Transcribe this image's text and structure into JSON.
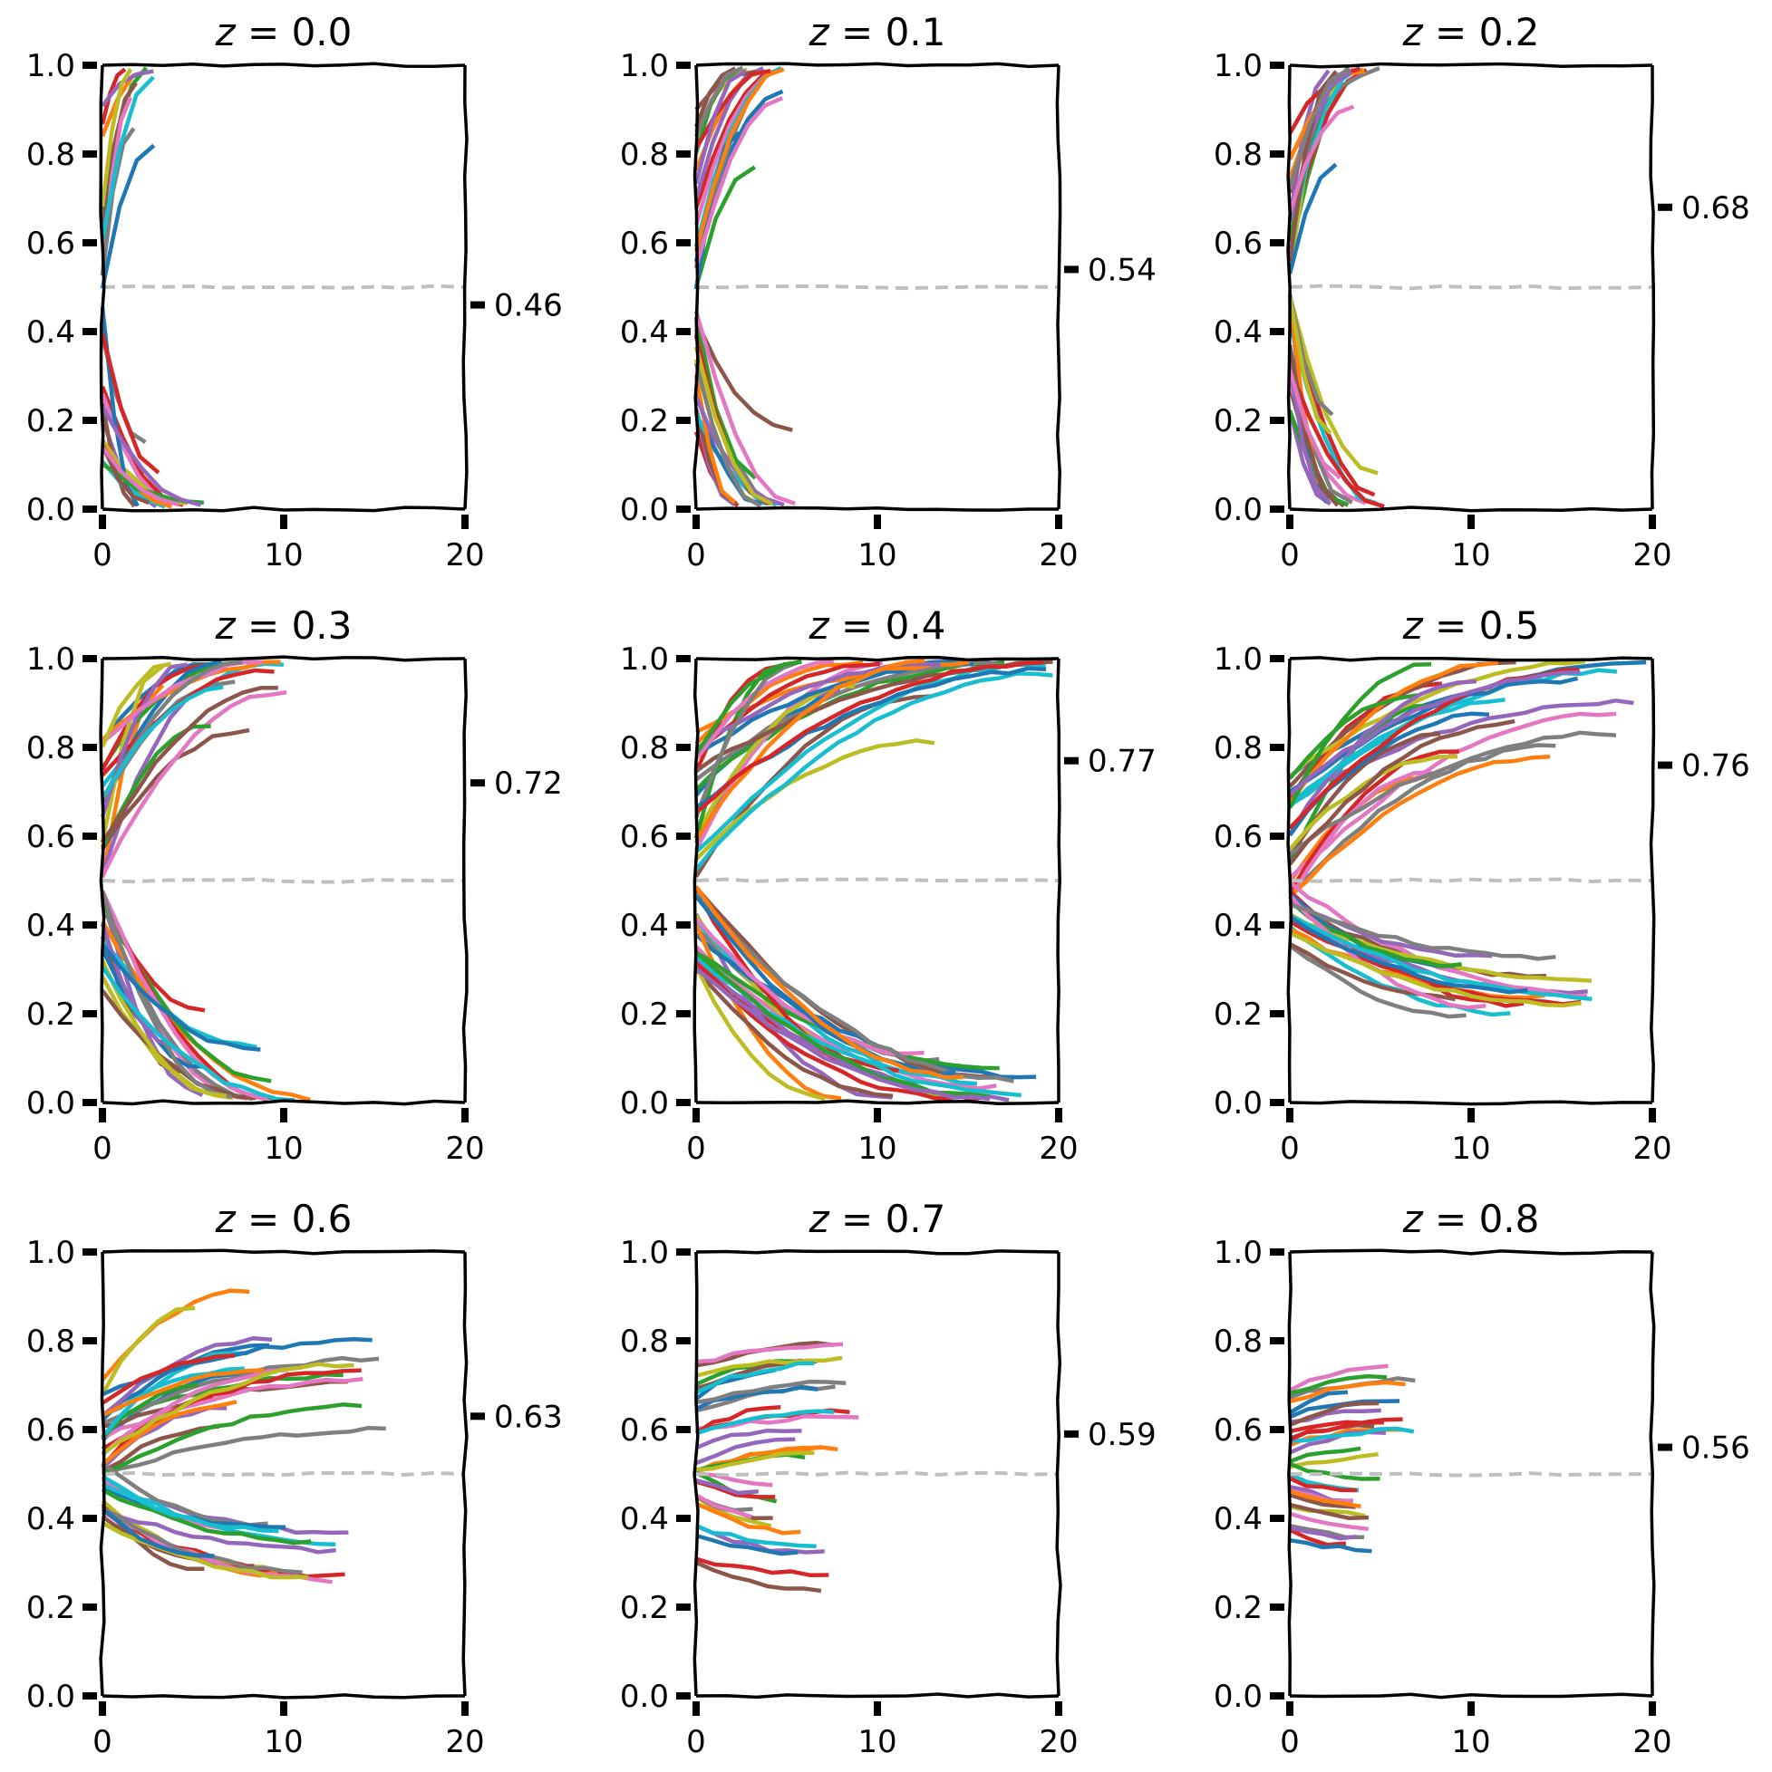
{
  "chart_data": {
    "type": "line",
    "grid": false,
    "legend": "none",
    "colors": [
      "#1f77b4",
      "#ff7f0e",
      "#2ca02c",
      "#d62728",
      "#9467bd",
      "#8c564b",
      "#e377c2",
      "#7f7f7f",
      "#bcbd22",
      "#17becf"
    ],
    "reference_line": {
      "y": 0.5,
      "color": "#bfbfbf",
      "style": "dashed"
    },
    "xlim": [
      0,
      20
    ],
    "ylim": [
      0,
      1
    ],
    "xticks": [
      "0",
      "10",
      "20"
    ],
    "yticks": [
      "0.0",
      "0.2",
      "0.4",
      "0.6",
      "0.8",
      "1.0"
    ],
    "panels": [
      {
        "title_var": "z",
        "title_value": "0.0",
        "marker_value": 0.46,
        "marker_label": "0.46",
        "series_groups": [
          {
            "start_range": [
              0.5,
              0.95
            ],
            "direction": "up",
            "count": 10,
            "len_range": [
              1,
              3
            ],
            "spread": 0.4
          },
          {
            "start_range": [
              0.05,
              0.5
            ],
            "direction": "down",
            "count": 14,
            "len_range": [
              1,
              6
            ],
            "spread": 0.4
          }
        ]
      },
      {
        "title_var": "z",
        "title_value": "0.1",
        "marker_value": 0.54,
        "marker_label": "0.54",
        "series_groups": [
          {
            "start_range": [
              0.5,
              0.9
            ],
            "direction": "up",
            "count": 18,
            "len_range": [
              2,
              5
            ],
            "spread": 0.4
          },
          {
            "start_range": [
              0.15,
              0.5
            ],
            "direction": "down",
            "count": 16,
            "len_range": [
              2,
              6
            ],
            "spread": 0.4
          }
        ]
      },
      {
        "title_var": "z",
        "title_value": "0.2",
        "marker_value": 0.68,
        "marker_label": "0.68",
        "series_groups": [
          {
            "start_range": [
              0.5,
              0.85
            ],
            "direction": "up",
            "count": 18,
            "len_range": [
              2,
              5
            ],
            "spread": 0.4
          },
          {
            "start_range": [
              0.2,
              0.5
            ],
            "direction": "down",
            "count": 16,
            "len_range": [
              2,
              6
            ],
            "spread": 0.4
          }
        ]
      },
      {
        "title_var": "z",
        "title_value": "0.3",
        "marker_value": 0.72,
        "marker_label": "0.72",
        "series_groups": [
          {
            "start_range": [
              0.5,
              0.85
            ],
            "direction": "up",
            "count": 20,
            "len_range": [
              3,
              11
            ],
            "spread": 0.4
          },
          {
            "start_range": [
              0.25,
              0.5
            ],
            "direction": "down",
            "count": 18,
            "len_range": [
              4,
              12
            ],
            "spread": 0.4
          }
        ]
      },
      {
        "title_var": "z",
        "title_value": "0.4",
        "marker_value": 0.77,
        "marker_label": "0.77",
        "series_groups": [
          {
            "start_range": [
              0.5,
              0.85
            ],
            "direction": "up",
            "count": 24,
            "len_range": [
              4,
              20
            ],
            "spread": 0.4
          },
          {
            "start_range": [
              0.3,
              0.5
            ],
            "direction": "down",
            "count": 22,
            "len_range": [
              6,
              20
            ],
            "spread": 0.4
          }
        ]
      },
      {
        "title_var": "z",
        "title_value": "0.5",
        "marker_value": 0.76,
        "marker_label": "0.76",
        "series_groups": [
          {
            "start_range": [
              0.45,
              0.75
            ],
            "direction": "up",
            "count": 26,
            "len_range": [
              7,
              20
            ],
            "spread": 0.3
          },
          {
            "start_range": [
              0.35,
              0.5
            ],
            "direction": "down",
            "count": 18,
            "len_range": [
              8,
              17
            ],
            "spread": 0.2
          }
        ]
      },
      {
        "title_var": "z",
        "title_value": "0.6",
        "marker_value": 0.63,
        "marker_label": "0.63",
        "series_groups": [
          {
            "start_range": [
              0.5,
              0.72
            ],
            "direction": "up",
            "count": 24,
            "len_range": [
              5,
              16
            ],
            "spread": 0.16
          },
          {
            "start_range": [
              0.38,
              0.52
            ],
            "direction": "down",
            "count": 18,
            "len_range": [
              5,
              14
            ],
            "spread": 0.12
          }
        ]
      },
      {
        "title_var": "z",
        "title_value": "0.7",
        "marker_value": 0.59,
        "marker_label": "0.59",
        "series_groups": [
          {
            "start_range": [
              0.5,
              0.75
            ],
            "direction": "up",
            "count": 20,
            "len_range": [
              4,
              10
            ],
            "spread": 0.05
          },
          {
            "start_range": [
              0.3,
              0.52
            ],
            "direction": "down",
            "count": 14,
            "len_range": [
              3,
              8
            ],
            "spread": 0.05
          }
        ]
      },
      {
        "title_var": "z",
        "title_value": "0.8",
        "marker_value": 0.56,
        "marker_label": "0.56",
        "series_groups": [
          {
            "start_range": [
              0.5,
              0.7
            ],
            "direction": "up",
            "count": 16,
            "len_range": [
              3,
              7
            ],
            "spread": 0.04
          },
          {
            "start_range": [
              0.35,
              0.52
            ],
            "direction": "down",
            "count": 14,
            "len_range": [
              3,
              5
            ],
            "spread": 0.03
          }
        ]
      }
    ]
  }
}
